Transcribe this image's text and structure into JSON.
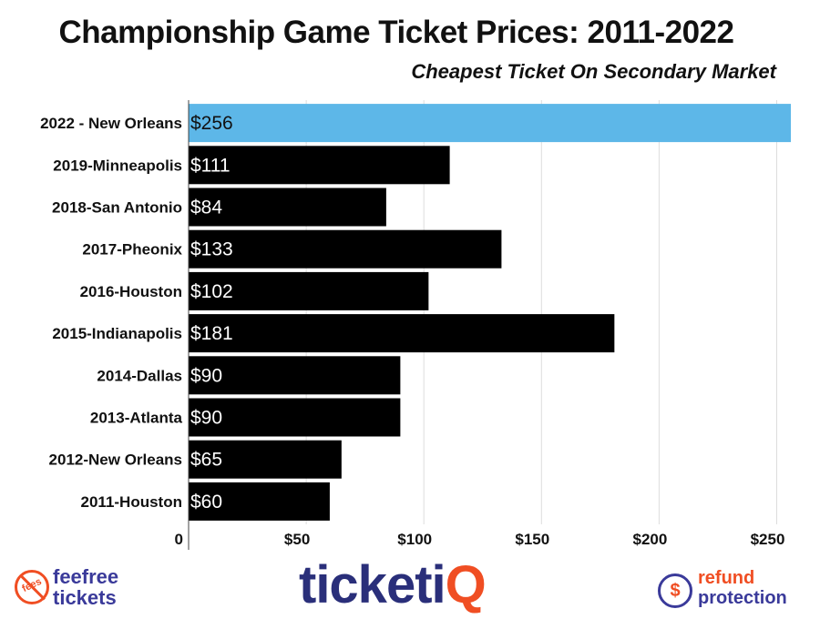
{
  "chart_data": {
    "type": "bar",
    "orientation": "horizontal",
    "title": "Championship Game Ticket Prices: 2011-2022",
    "subtitle": "Cheapest Ticket On Secondary Market",
    "categories": [
      "2022 - New Orleans",
      "2019-Minneapolis",
      "2018-San Antonio",
      "2017-Pheonix",
      "2016-Houston",
      "2015-Indianapolis",
      "2014-Dallas",
      "2013-Atlanta",
      "2012-New Orleans",
      "2011-Houston"
    ],
    "values": [
      256,
      111,
      84,
      133,
      102,
      181,
      90,
      90,
      65,
      60
    ],
    "data_labels": [
      "$256",
      "$111",
      "$84",
      "$133",
      "$102",
      "$181",
      "$90",
      "$90",
      "$65",
      "$60"
    ],
    "xlim": [
      0,
      256
    ],
    "xticks": [
      0,
      50,
      100,
      150,
      200,
      250
    ],
    "xtick_labels": [
      "0",
      "$50",
      "$100",
      "$150",
      "$200",
      "$250"
    ],
    "grid": "vertical",
    "colors": {
      "highlight": "#5db7e8",
      "default": "#000000",
      "grid": "#dddddd"
    },
    "highlight_index": 0
  },
  "footer": {
    "left_logo_badge": "fees",
    "left_logo_line1": "feefree",
    "left_logo_line2": "tickets",
    "center_logo_main": "ticketi",
    "center_logo_accent": "Q",
    "right_logo_icon": "dollar-refund-icon",
    "right_logo_symbol": "$",
    "right_logo_line1": "refund",
    "right_logo_line2": "protection"
  }
}
